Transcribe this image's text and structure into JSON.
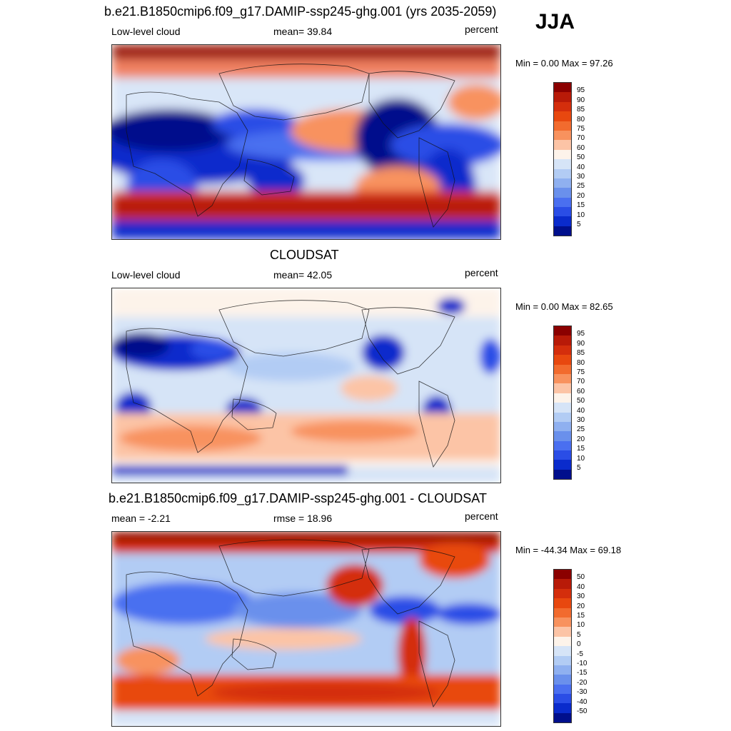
{
  "season": "JJA",
  "panels": [
    {
      "id": "model",
      "title": "b.e21.B1850cmip6.f09_g17.DAMIP-ssp245-ghg.001 (yrs 2035-2059)",
      "left_label": "Low-level cloud",
      "center_label": "mean=  39.84",
      "right_label": "percent",
      "minmax": "Min =   0.00 Max =  97.26",
      "colorbar_labels": [
        "95",
        "90",
        "85",
        "80",
        "75",
        "70",
        "60",
        "50",
        "40",
        "30",
        "25",
        "20",
        "15",
        "10",
        "5"
      ]
    },
    {
      "id": "obs",
      "title": "CLOUDSAT",
      "left_label": "Low-level cloud",
      "center_label": "mean=  42.05",
      "right_label": "percent",
      "minmax": "Min =   0.00 Max =  82.65",
      "colorbar_labels": [
        "95",
        "90",
        "85",
        "80",
        "75",
        "70",
        "60",
        "50",
        "40",
        "30",
        "25",
        "20",
        "15",
        "10",
        "5"
      ]
    },
    {
      "id": "diff",
      "title": "b.e21.B1850cmip6.f09_g17.DAMIP-ssp245-ghg.001 - CLOUDSAT",
      "left_label": "mean =  -2.21",
      "center_label": "rmse =  18.96",
      "right_label": "percent",
      "minmax": "Min = -44.34 Max =  69.18",
      "colorbar_labels": [
        "50",
        "40",
        "30",
        "20",
        "15",
        "10",
        "5",
        "0",
        "-5",
        "-10",
        "-15",
        "-20",
        "-30",
        "-40",
        "-50"
      ]
    }
  ],
  "colors": {
    "scale": [
      "#8b0000",
      "#b81a08",
      "#d42e0c",
      "#e8480f",
      "#f26b2e",
      "#f8925e",
      "#fcc4a6",
      "#fdf3ea",
      "#d6e4f7",
      "#b2ccf4",
      "#8fb0f0",
      "#6a90ec",
      "#4a6ff0",
      "#2a4de6",
      "#0a2bcc",
      "#000f8c"
    ]
  }
}
